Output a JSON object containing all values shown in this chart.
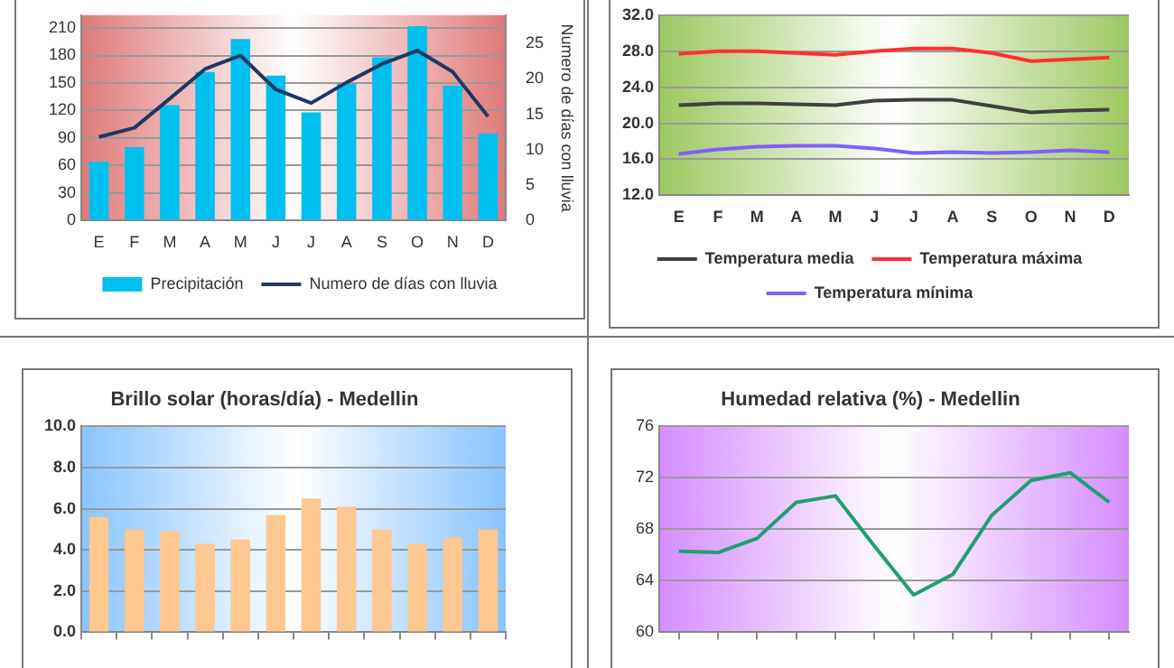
{
  "chart_data": [
    {
      "type": "bar",
      "categories": [
        "E",
        "F",
        "M",
        "A",
        "M",
        "J",
        "J",
        "A",
        "S",
        "O",
        "N",
        "D"
      ],
      "series": [
        {
          "name": "Precipitación",
          "type": "bar",
          "color": "#00c0f0",
          "values": [
            64,
            80,
            126,
            162,
            198,
            158,
            118,
            149,
            178,
            212,
            147,
            95
          ]
        },
        {
          "name": "Numero de días con lluvia",
          "type": "line",
          "axis": "y2",
          "color": "#1f3864",
          "values": [
            11.8,
            13.1,
            17.2,
            21.4,
            23.3,
            18.5,
            16.6,
            19.5,
            22.1,
            24.0,
            21.0,
            14.7
          ]
        }
      ],
      "ylim": [
        0,
        224
      ],
      "yticks": [
        0,
        30,
        60,
        90,
        120,
        150,
        180,
        210
      ],
      "y2lim": [
        0,
        29
      ],
      "y2ticks": [
        0,
        5,
        10,
        15,
        20,
        25
      ],
      "y2label": "Numero de días con lluvia",
      "grid": "y",
      "legend": "bottom",
      "marker": "none"
    },
    {
      "type": "line",
      "categories": [
        "E",
        "F",
        "M",
        "A",
        "M",
        "J",
        "J",
        "A",
        "S",
        "O",
        "N",
        "D"
      ],
      "series": [
        {
          "name": "Temperatura media",
          "type": "line",
          "color": "#404040",
          "values": [
            22.0,
            22.2,
            22.2,
            22.1,
            22.0,
            22.5,
            22.6,
            22.6,
            21.9,
            21.2,
            21.4,
            21.5
          ]
        },
        {
          "name": "Temperatura máxima",
          "color": "#ff3030",
          "values": [
            27.7,
            28.0,
            28.0,
            27.8,
            27.6,
            28.0,
            28.3,
            28.3,
            27.8,
            26.9,
            27.1,
            27.3
          ]
        },
        {
          "name": "Temperatura mínima",
          "color": "#7f5fff",
          "values": [
            16.6,
            17.1,
            17.4,
            17.5,
            17.5,
            17.2,
            16.7,
            16.8,
            16.7,
            16.8,
            17.0,
            16.8
          ]
        }
      ],
      "ylim": [
        12,
        32
      ],
      "yticks": [
        {
          "value": 12,
          "label": "12.0"
        },
        {
          "value": 16,
          "label": "16.0"
        },
        {
          "value": 20,
          "label": "20.0"
        },
        {
          "value": 24,
          "label": "24.0"
        },
        {
          "value": 28,
          "label": "28.0"
        },
        {
          "value": 32,
          "label": "32.0"
        }
      ],
      "grid": "y",
      "legend": "bottom",
      "marker": "none"
    },
    {
      "type": "bar",
      "title": "Brillo solar (horas/día) - Medellin",
      "categories": [
        null,
        null,
        null,
        null,
        null,
        null,
        null,
        null,
        null,
        null,
        null,
        null
      ],
      "color": "#ffc890",
      "values": [
        5.6,
        5.0,
        4.9,
        4.3,
        4.5,
        5.7,
        6.5,
        6.1,
        5.0,
        4.3,
        4.6,
        5.0
      ],
      "ylim": [
        0,
        10
      ],
      "yticks": [
        {
          "value": 0,
          "label": "0.0"
        },
        {
          "value": 2,
          "label": "2.0"
        },
        {
          "value": 4,
          "label": "4.0"
        },
        {
          "value": 6,
          "label": "6.0"
        },
        {
          "value": 8,
          "label": "8.0"
        },
        {
          "value": 10,
          "label": "10.0"
        }
      ],
      "grid": "y"
    },
    {
      "type": "line",
      "title": "Humedad relativa (%) - Medellin",
      "categories": [
        null,
        null,
        null,
        null,
        null,
        null,
        null,
        null,
        null,
        null,
        null,
        null
      ],
      "color": "#20a070",
      "values": [
        66.3,
        66.2,
        67.3,
        70.1,
        70.6,
        66.7,
        62.9,
        64.5,
        69.1,
        71.8,
        72.4,
        70.1
      ],
      "ylim": [
        60,
        76
      ],
      "yticks": [
        60,
        64,
        68,
        72,
        76
      ],
      "grid": "y",
      "marker": "none"
    }
  ]
}
